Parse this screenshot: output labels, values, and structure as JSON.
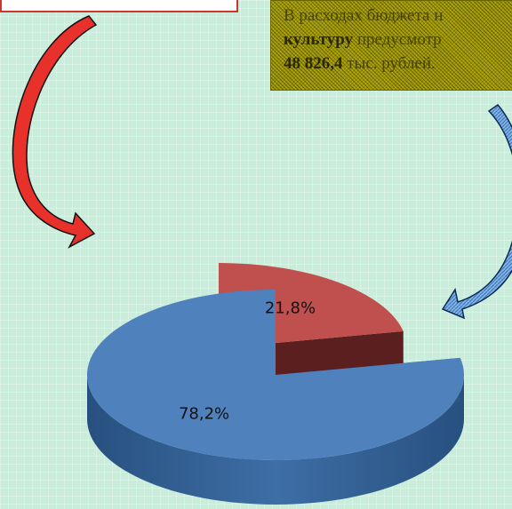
{
  "note": {
    "line1": "В расходах бюджета н",
    "line2_bold": "культуру",
    "line2_rest": " предусмотр",
    "line3_bold": "48 826,4",
    "line3_rest": " тыс. рублей."
  },
  "chart_data": {
    "type": "pie",
    "style": "3d-exploded",
    "slices": [
      {
        "label": "21,8%",
        "value": 21.8,
        "color": "#c0504d",
        "side_color": "#5a1f1e"
      },
      {
        "label": "78,2%",
        "value": 78.2,
        "color": "#4f81bd",
        "side_color": "#2c5485"
      }
    ],
    "arrows": [
      {
        "color": "#e8312a",
        "points_to": "21,8%"
      },
      {
        "color": "#7fb3e8",
        "points_to": "78,2%"
      }
    ]
  }
}
